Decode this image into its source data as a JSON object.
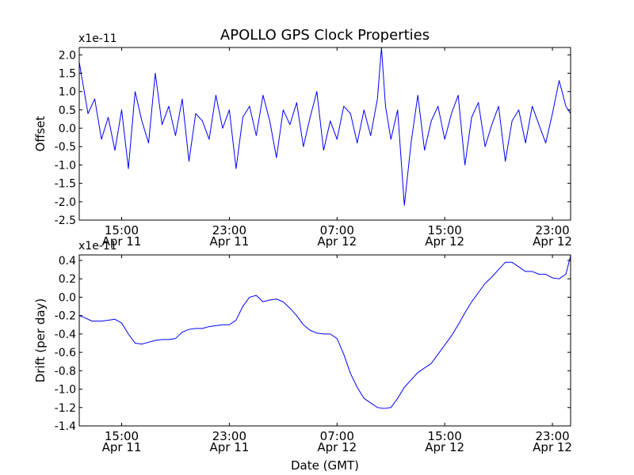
{
  "figure": {
    "title": "APOLLO GPS Clock Properties",
    "xlabel": "Date (GMT)",
    "line_color": "#0000ff",
    "background": "#ffffff"
  },
  "chart_data": [
    {
      "type": "line",
      "name": "offset",
      "title": "APOLLO GPS Clock Properties",
      "ylabel": "Offset",
      "xlabel": "",
      "y_multiplier": "x1e-11",
      "ylim": [
        -2.5,
        2.2
      ],
      "yticks": [
        2.0,
        1.5,
        1.0,
        0.5,
        0.0,
        -0.5,
        -1.0,
        -1.5,
        -2.0,
        -2.5
      ],
      "ytick_labels": [
        "2.0",
        "1.5",
        "1.0",
        "0.5",
        "0.0",
        "-0.5",
        "-1.0",
        "-1.5",
        "-2.0",
        "-2.5"
      ],
      "xlim_hours": [
        11.85,
        48.35
      ],
      "xtick_hours": [
        15,
        23,
        31,
        39,
        47
      ],
      "xtick_labels": [
        [
          "15:00",
          "Apr 11"
        ],
        [
          "23:00",
          "Apr 11"
        ],
        [
          "07:00",
          "Apr 12"
        ],
        [
          "15:00",
          "Apr 12"
        ],
        [
          "23:00",
          "Apr 12"
        ]
      ],
      "series": [
        {
          "name": "offset",
          "x_hours": [
            11.85,
            12.5,
            13.0,
            13.5,
            14.0,
            14.5,
            15.0,
            15.5,
            16.0,
            16.5,
            17.0,
            17.5,
            18.0,
            18.5,
            19.0,
            19.5,
            20.0,
            20.5,
            21.0,
            21.5,
            22.0,
            22.5,
            23.0,
            23.5,
            24.0,
            24.5,
            25.0,
            25.5,
            26.0,
            26.5,
            27.0,
            27.5,
            28.0,
            28.5,
            29.0,
            29.5,
            30.0,
            30.5,
            31.0,
            31.5,
            32.0,
            32.5,
            33.0,
            33.5,
            34.0,
            34.3,
            34.6,
            35.0,
            35.5,
            36.0,
            36.5,
            37.0,
            37.5,
            38.0,
            38.5,
            39.0,
            39.5,
            40.0,
            40.5,
            41.0,
            41.5,
            42.0,
            42.5,
            43.0,
            43.5,
            44.0,
            44.5,
            45.0,
            45.5,
            46.0,
            46.5,
            47.0,
            47.5,
            48.0,
            48.35
          ],
          "values": [
            1.8,
            0.4,
            0.8,
            -0.3,
            0.3,
            -0.6,
            0.5,
            -1.1,
            1.0,
            0.2,
            -0.4,
            1.5,
            0.1,
            0.6,
            -0.2,
            0.8,
            -0.9,
            0.4,
            0.2,
            -0.3,
            0.9,
            0.0,
            0.5,
            -1.1,
            0.3,
            0.6,
            -0.2,
            0.9,
            0.2,
            -0.8,
            0.5,
            0.1,
            0.7,
            -0.5,
            0.3,
            1.0,
            -0.6,
            0.2,
            -0.3,
            0.6,
            0.4,
            -0.4,
            0.5,
            -0.2,
            0.8,
            2.2,
            0.6,
            -0.3,
            0.5,
            -2.1,
            -0.4,
            0.9,
            -0.6,
            0.2,
            0.6,
            -0.3,
            0.4,
            0.9,
            -1.0,
            0.3,
            0.7,
            -0.5,
            0.1,
            0.6,
            -0.9,
            0.2,
            0.5,
            -0.4,
            0.6,
            0.1,
            -0.4,
            0.4,
            1.3,
            0.6,
            0.4
          ]
        }
      ]
    },
    {
      "type": "line",
      "name": "drift",
      "title": "",
      "ylabel": "Drift (per day)",
      "xlabel": "Date (GMT)",
      "y_multiplier": "x1e-11",
      "ylim": [
        -1.4,
        0.46
      ],
      "yticks": [
        0.4,
        0.2,
        0.0,
        -0.2,
        -0.4,
        -0.6,
        -0.8,
        -1.0,
        -1.2,
        -1.4
      ],
      "ytick_labels": [
        "0.4",
        "0.2",
        "0.0",
        "-0.2",
        "-0.4",
        "-0.6",
        "-0.8",
        "-1.0",
        "-1.2",
        "-1.4"
      ],
      "xlim_hours": [
        11.85,
        48.35
      ],
      "xtick_hours": [
        15,
        23,
        31,
        39,
        47
      ],
      "xtick_labels": [
        [
          "15:00",
          "Apr 11"
        ],
        [
          "23:00",
          "Apr 11"
        ],
        [
          "07:00",
          "Apr 12"
        ],
        [
          "15:00",
          "Apr 12"
        ],
        [
          "23:00",
          "Apr 12"
        ]
      ],
      "series": [
        {
          "name": "drift",
          "x_hours": [
            11.85,
            12.2,
            12.8,
            13.5,
            14.0,
            14.5,
            15.0,
            15.5,
            16.0,
            16.5,
            17.0,
            17.5,
            18.0,
            18.5,
            19.0,
            19.5,
            20.0,
            20.5,
            21.0,
            21.5,
            22.0,
            22.5,
            23.0,
            23.5,
            24.0,
            24.5,
            25.0,
            25.5,
            26.0,
            26.5,
            27.0,
            27.5,
            28.0,
            28.5,
            29.0,
            29.5,
            30.0,
            30.5,
            31.0,
            31.5,
            32.0,
            32.5,
            33.0,
            33.5,
            34.0,
            34.5,
            35.0,
            35.5,
            36.0,
            36.5,
            37.0,
            37.5,
            38.0,
            38.5,
            39.0,
            39.5,
            40.0,
            40.5,
            41.0,
            41.5,
            42.0,
            42.5,
            43.0,
            43.5,
            44.0,
            44.5,
            45.0,
            45.5,
            46.0,
            46.5,
            47.0,
            47.5,
            48.0,
            48.35
          ],
          "values": [
            -0.2,
            -0.22,
            -0.26,
            -0.26,
            -0.25,
            -0.24,
            -0.28,
            -0.4,
            -0.5,
            -0.51,
            -0.49,
            -0.47,
            -0.46,
            -0.46,
            -0.45,
            -0.38,
            -0.35,
            -0.34,
            -0.34,
            -0.32,
            -0.31,
            -0.3,
            -0.3,
            -0.25,
            -0.1,
            0.0,
            0.02,
            -0.05,
            -0.03,
            -0.02,
            -0.05,
            -0.12,
            -0.2,
            -0.3,
            -0.36,
            -0.39,
            -0.4,
            -0.4,
            -0.45,
            -0.62,
            -0.83,
            -0.98,
            -1.1,
            -1.15,
            -1.2,
            -1.21,
            -1.2,
            -1.1,
            -0.98,
            -0.9,
            -0.82,
            -0.77,
            -0.72,
            -0.62,
            -0.52,
            -0.42,
            -0.3,
            -0.17,
            -0.05,
            0.05,
            0.15,
            0.22,
            0.3,
            0.38,
            0.38,
            0.33,
            0.28,
            0.28,
            0.25,
            0.25,
            0.21,
            0.2,
            0.25,
            0.45
          ]
        }
      ]
    }
  ]
}
